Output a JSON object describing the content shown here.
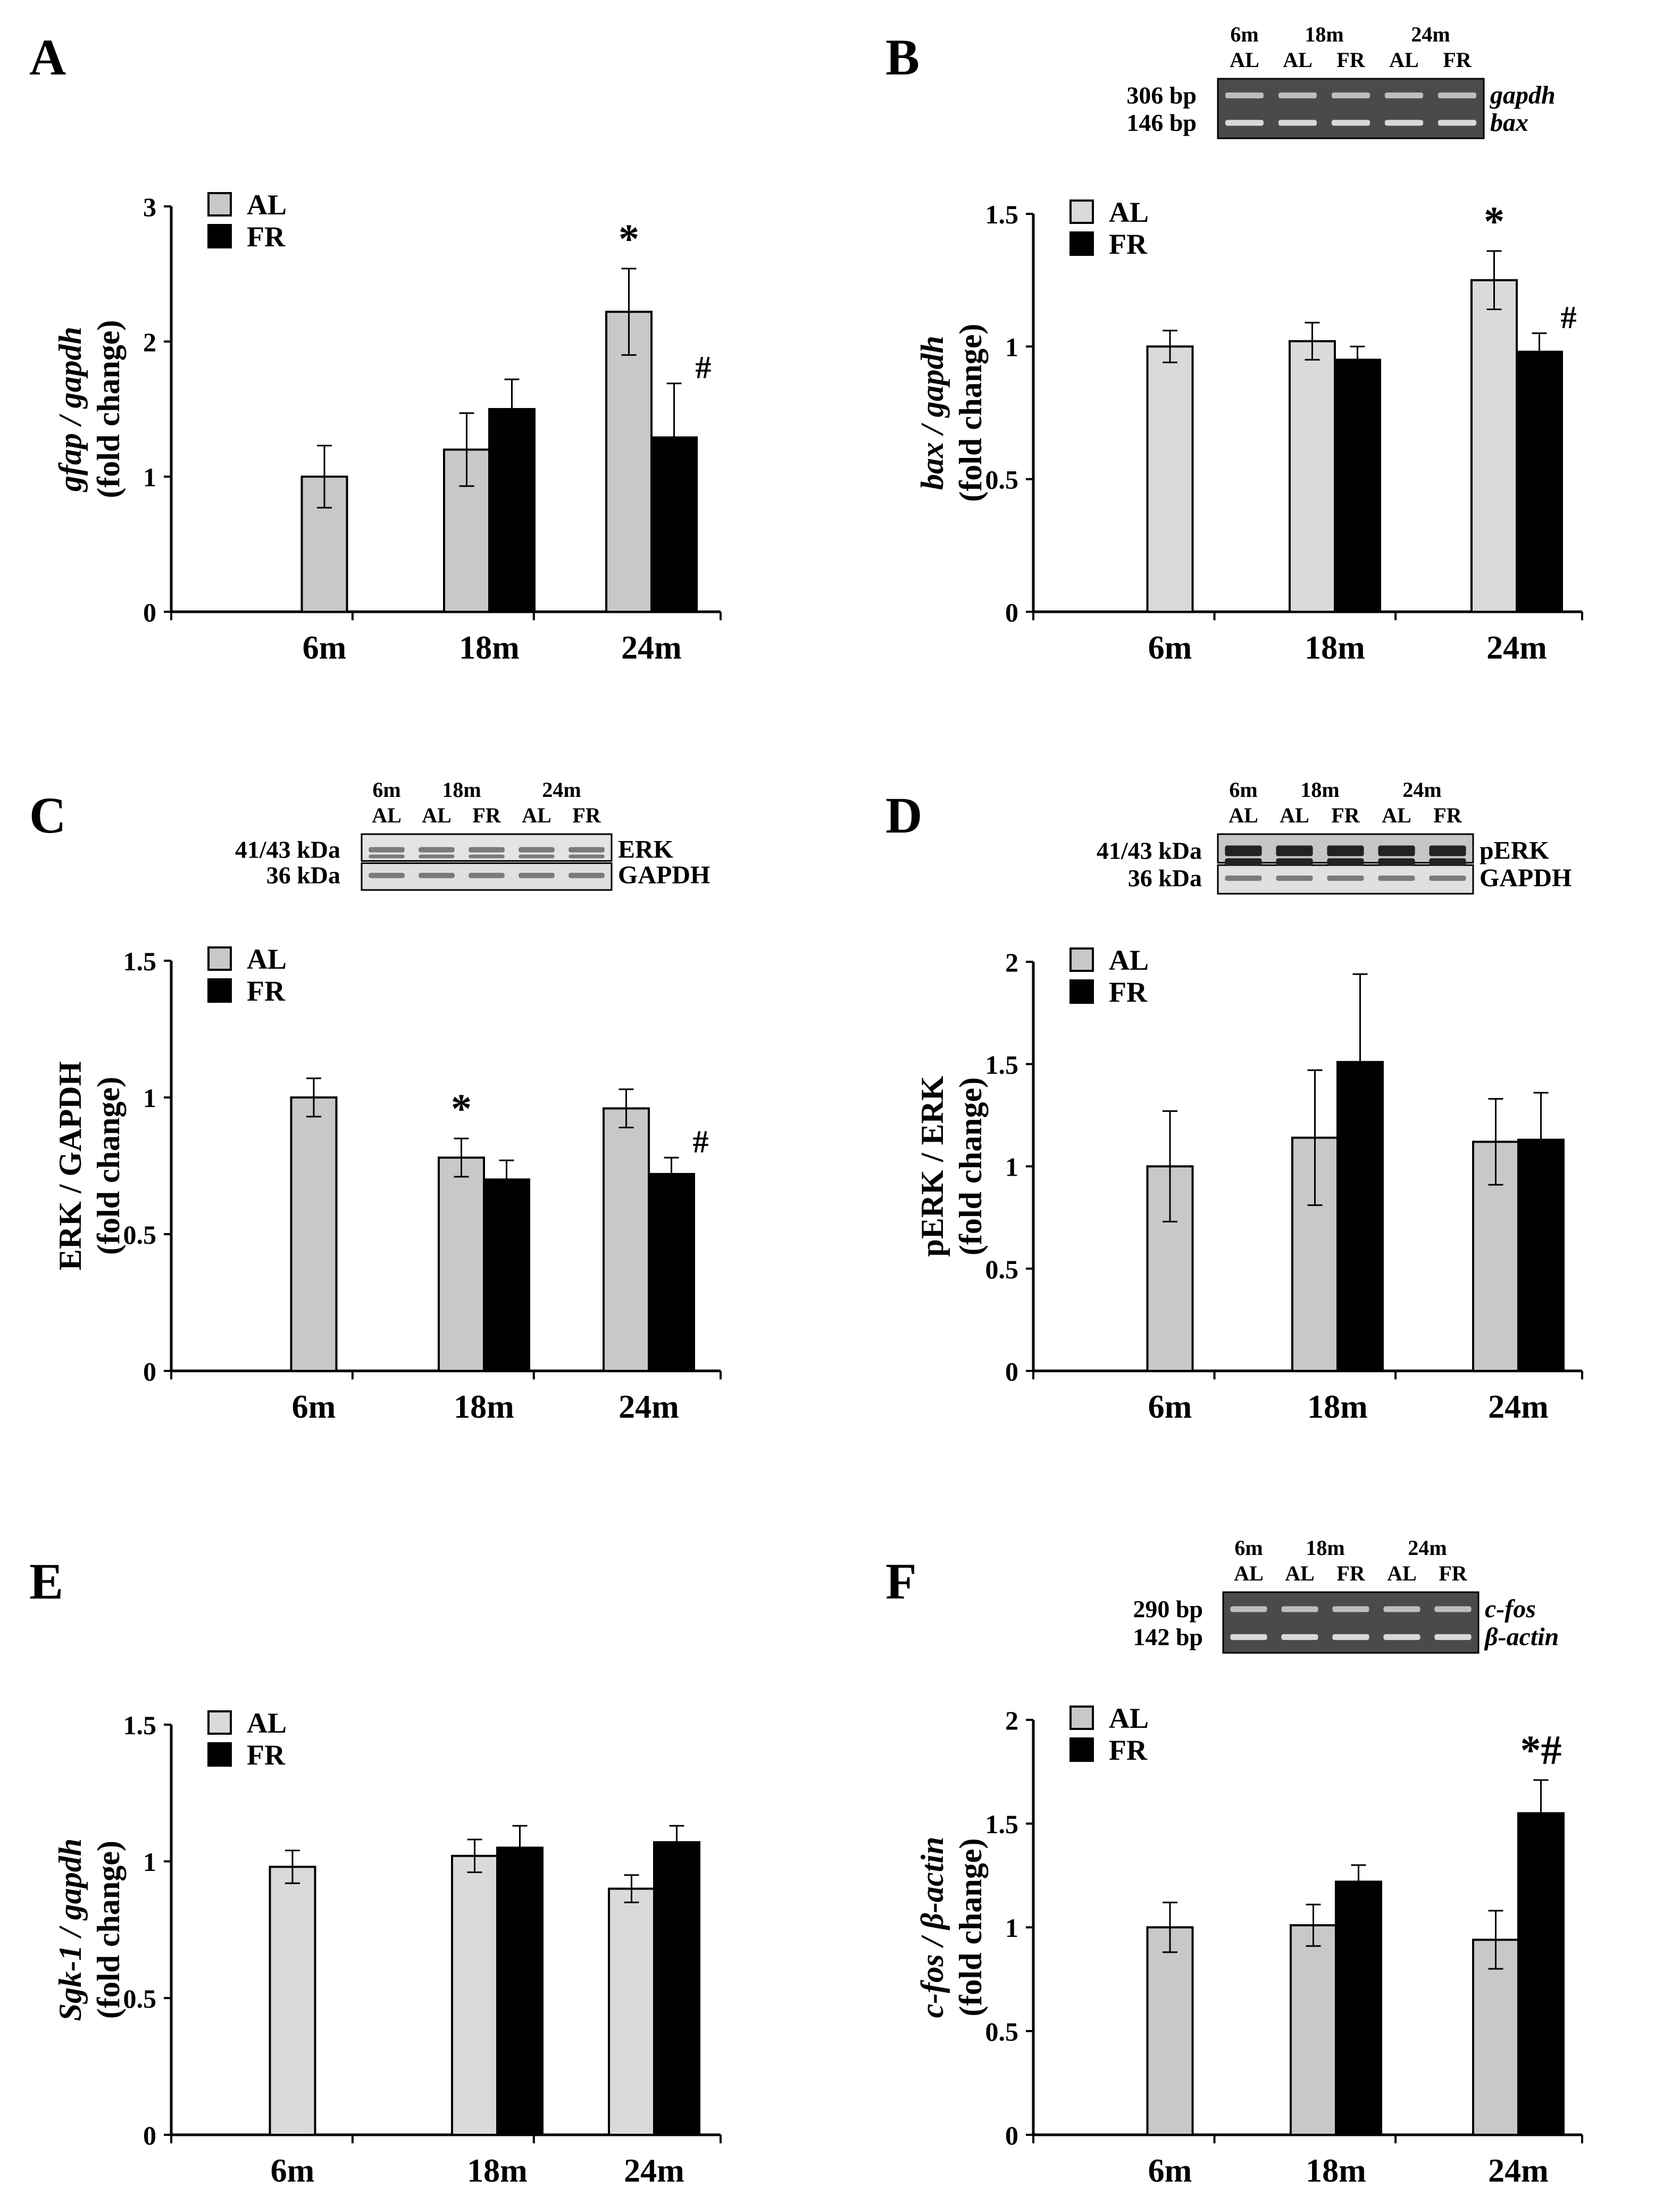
{
  "figure": {
    "background": "#ffffff",
    "al_color": "#c8c8c8",
    "al_color_light": "#dadada",
    "fr_color": "#000000"
  },
  "legend": {
    "al": "AL",
    "fr": "FR"
  },
  "chart_data": [
    {
      "type": "bar",
      "panel": "A",
      "categories": [
        "6m",
        "18m",
        "24m"
      ],
      "series": [
        {
          "name": "AL",
          "values": [
            1.0,
            1.2,
            2.22
          ],
          "errors": [
            0.23,
            0.27,
            0.32
          ]
        },
        {
          "name": "FR",
          "values": [
            null,
            1.5,
            1.29
          ],
          "errors": [
            null,
            0.22,
            0.4
          ]
        }
      ],
      "ylabel": [
        "gfap / gapdh",
        "(fold change)"
      ],
      "ylim": [
        0,
        3
      ],
      "yticks": [
        0,
        1,
        2,
        3
      ],
      "ytick_labels": [
        "0",
        "1",
        "2",
        "3"
      ],
      "annotations": [
        {
          "text": "*",
          "category": "24m",
          "series": "AL"
        },
        {
          "text": "#",
          "category": "24m",
          "series": "FR"
        }
      ],
      "gel": null
    },
    {
      "type": "bar",
      "panel": "B",
      "categories": [
        "6m",
        "18m",
        "24m"
      ],
      "series": [
        {
          "name": "AL",
          "values": [
            1.0,
            1.02,
            1.25
          ],
          "errors": [
            0.06,
            0.07,
            0.11
          ]
        },
        {
          "name": "FR",
          "values": [
            null,
            0.95,
            0.98
          ],
          "errors": [
            null,
            0.05,
            0.07
          ]
        }
      ],
      "ylabel": [
        "bax / gapdh",
        "(fold change)"
      ],
      "ylim": [
        0,
        1.5
      ],
      "yticks": [
        0,
        0.5,
        1,
        1.5
      ],
      "ytick_labels": [
        "0",
        "0.5",
        "1",
        "1.5"
      ],
      "annotations": [
        {
          "text": "*",
          "category": "24m",
          "series": "AL"
        },
        {
          "text": "#",
          "category": "24m",
          "series": "FR"
        }
      ],
      "gel": {
        "lane_groups": [
          "6m",
          "18m",
          "24m"
        ],
        "lane_labels": [
          "AL",
          "AL",
          "FR",
          "AL",
          "FR"
        ],
        "band_sizes": [
          "306 bp",
          "146 bp"
        ],
        "band_names": [
          "gapdh",
          "bax"
        ],
        "style": "dna",
        "split": false
      }
    },
    {
      "type": "bar",
      "panel": "C",
      "categories": [
        "6m",
        "18m",
        "24m"
      ],
      "series": [
        {
          "name": "AL",
          "values": [
            1.0,
            0.78,
            0.96
          ],
          "errors": [
            0.07,
            0.07,
            0.07
          ]
        },
        {
          "name": "FR",
          "values": [
            null,
            0.7,
            0.72
          ],
          "errors": [
            null,
            0.07,
            0.06
          ]
        }
      ],
      "ylabel": [
        "ERK / GAPDH",
        "(fold change)"
      ],
      "ylim": [
        0,
        1.5
      ],
      "yticks": [
        0,
        0.5,
        1,
        1.5
      ],
      "ytick_labels": [
        "0",
        "0.5",
        "1",
        "1.5"
      ],
      "annotations": [
        {
          "text": "*",
          "category": "18m",
          "series": "AL"
        },
        {
          "text": "#",
          "category": "24m",
          "series": "FR"
        }
      ],
      "gel": {
        "lane_groups": [
          "6m",
          "18m",
          "24m"
        ],
        "lane_labels": [
          "AL",
          "AL",
          "FR",
          "AL",
          "FR"
        ],
        "band_sizes": [
          "41/43 kDa",
          "36 kDa"
        ],
        "band_names": [
          "ERK",
          "GAPDH"
        ],
        "style": "western-light",
        "split": true
      }
    },
    {
      "type": "bar",
      "panel": "D",
      "categories": [
        "6m",
        "18m",
        "24m"
      ],
      "series": [
        {
          "name": "AL",
          "values": [
            1.0,
            1.14,
            1.12
          ],
          "errors": [
            0.27,
            0.33,
            0.21
          ]
        },
        {
          "name": "FR",
          "values": [
            null,
            1.51,
            1.13
          ],
          "errors": [
            null,
            0.43,
            0.23
          ]
        }
      ],
      "ylabel": [
        "pERK / ERK",
        "(fold change)"
      ],
      "ylim": [
        0,
        2
      ],
      "yticks": [
        0,
        0.5,
        1,
        1.5,
        2
      ],
      "ytick_labels": [
        "0",
        "0.5",
        "1",
        "1.5",
        "2"
      ],
      "annotations": [],
      "gel": {
        "lane_groups": [
          "6m",
          "18m",
          "24m"
        ],
        "lane_labels": [
          "AL",
          "AL",
          "FR",
          "AL",
          "FR"
        ],
        "band_sizes": [
          "41/43 kDa",
          "36 kDa"
        ],
        "band_names": [
          "pERK",
          "GAPDH"
        ],
        "style": "western-dark",
        "split": true
      }
    },
    {
      "type": "bar",
      "panel": "E",
      "categories": [
        "6m",
        "18m",
        "24m"
      ],
      "series": [
        {
          "name": "AL",
          "values": [
            0.98,
            1.02,
            0.9
          ],
          "errors": [
            0.06,
            0.06,
            0.05
          ]
        },
        {
          "name": "FR",
          "values": [
            null,
            1.05,
            1.07
          ],
          "errors": [
            null,
            0.08,
            0.06
          ]
        }
      ],
      "ylabel": [
        "Sgk-1 / gapdh",
        "(fold change)"
      ],
      "ylim": [
        0,
        1.5
      ],
      "yticks": [
        0,
        0.5,
        1,
        1.5
      ],
      "ytick_labels": [
        "0",
        "0.5",
        "1",
        "1.5"
      ],
      "annotations": [],
      "gel": null
    },
    {
      "type": "bar",
      "panel": "F",
      "categories": [
        "6m",
        "18m",
        "24m"
      ],
      "series": [
        {
          "name": "AL",
          "values": [
            1.0,
            1.01,
            0.94
          ],
          "errors": [
            0.12,
            0.1,
            0.14
          ]
        },
        {
          "name": "FR",
          "values": [
            null,
            1.22,
            1.55
          ],
          "errors": [
            null,
            0.08,
            0.16
          ]
        }
      ],
      "ylabel": [
        "c-fos / β-actin",
        "(fold change)"
      ],
      "ylim": [
        0,
        2
      ],
      "yticks": [
        0,
        0.5,
        1,
        1.5,
        2
      ],
      "ytick_labels": [
        "0",
        "0.5",
        "1",
        "1.5",
        "2"
      ],
      "annotations": [
        {
          "text": "*#",
          "category": "24m",
          "series": "FR"
        }
      ],
      "gel": {
        "lane_groups": [
          "6m",
          "18m",
          "24m"
        ],
        "lane_labels": [
          "AL",
          "AL",
          "FR",
          "AL",
          "FR"
        ],
        "band_sizes": [
          "290 bp",
          "142 bp"
        ],
        "band_names": [
          "c-fos",
          "β-actin"
        ],
        "style": "dna",
        "split": false
      }
    }
  ]
}
